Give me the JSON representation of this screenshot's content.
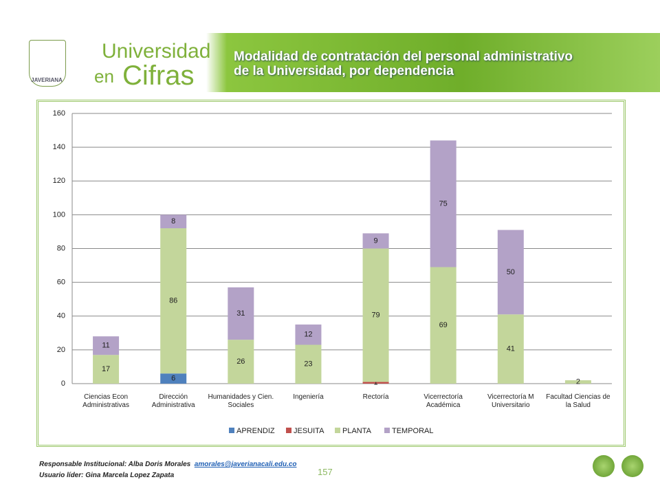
{
  "header": {
    "brand_line1": "Universidad",
    "brand_en": "en",
    "brand_cifras": "Cifras",
    "crest": "JAVERIANA"
  },
  "chart_data": {
    "type": "stacked_bar",
    "title": "Modalidad de contratación del personal administrativo\nde la Universidad, por dependencia",
    "categories": [
      "Ciencias Econ\nAdministrativas",
      "Dirección\nAdministrativa",
      "Humanidades y Cien.\nSociales",
      "Ingeniería",
      "Rectoría",
      "Vicerrectoría\nAcadémica",
      "Vicerrectoría M\nUniversitario",
      "Facultad Ciencias de\nla Salud"
    ],
    "series": [
      {
        "name": "APRENDIZ",
        "color": "#4f81bd",
        "values": [
          null,
          6,
          null,
          null,
          null,
          null,
          null,
          null
        ]
      },
      {
        "name": "JESUITA",
        "color": "#c0504d",
        "values": [
          null,
          null,
          null,
          null,
          1,
          null,
          null,
          null
        ]
      },
      {
        "name": "PLANTA",
        "color": "#c3d69b",
        "values": [
          17,
          86,
          26,
          23,
          79,
          69,
          41,
          2
        ]
      },
      {
        "name": "TEMPORAL",
        "color": "#b3a2c7",
        "values": [
          11,
          8,
          31,
          12,
          9,
          75,
          50,
          null
        ]
      }
    ],
    "ylim": [
      0,
      160
    ],
    "yticks": [
      0,
      20,
      40,
      60,
      80,
      100,
      120,
      140,
      160
    ],
    "grid": true,
    "legend": "bottom"
  },
  "footer": {
    "responsible": "Responsable Institucional: Alba Doris Morales",
    "email": "amorales@javerianacali.edu.co",
    "leader": "Usuario líder: Gina Marcela Lopez Zapata",
    "page": "157"
  }
}
